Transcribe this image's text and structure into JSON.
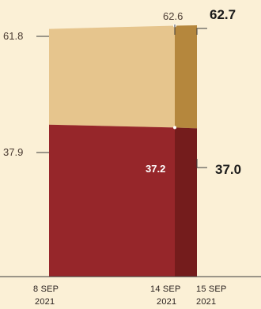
{
  "chart_data": {
    "type": "area",
    "title": "",
    "xlabel": "",
    "ylabel": "",
    "ylim": [
      0,
      62.7
    ],
    "dates": [
      {
        "line1": "8 SEP",
        "line2": "2021"
      },
      {
        "line1": "14 SEP",
        "line2": "2021"
      },
      {
        "line1": "15 SEP",
        "line2": "2021"
      }
    ],
    "series": [
      {
        "role": "lower",
        "color": "#96262a",
        "values": [
          37.9,
          37.2,
          37.0
        ]
      },
      {
        "role": "upper",
        "color": "#e6c58d",
        "values": [
          61.8,
          62.6,
          62.7
        ]
      }
    ],
    "final_segment_colors": {
      "lower": "#741c1c",
      "upper": "#b5873d"
    },
    "labels": {
      "upper_start": "61.8",
      "upper_mid": "62.6",
      "upper_end": "62.7",
      "lower_start": "37.9",
      "lower_mid": "37.2",
      "lower_end": "37.0"
    }
  }
}
